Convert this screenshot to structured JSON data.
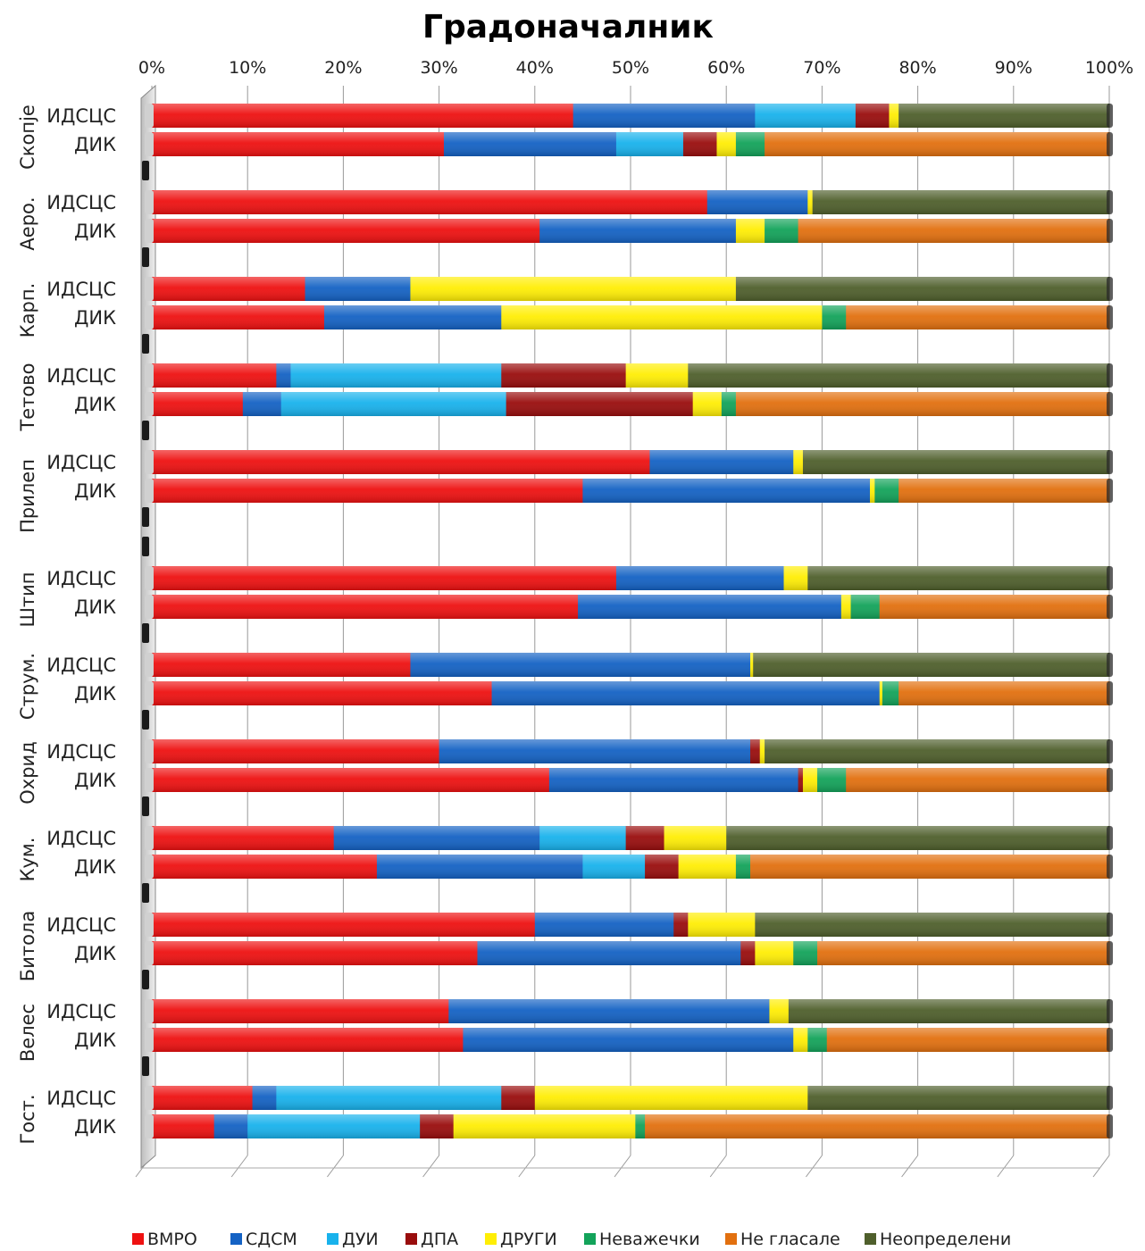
{
  "chart_data": {
    "type": "bar",
    "orientation": "horizontal",
    "stacked": "percent",
    "title": "Градоначалник",
    "xlim": [
      0,
      100
    ],
    "x_ticks": [
      "0%",
      "10%",
      "20%",
      "30%",
      "40%",
      "50%",
      "60%",
      "70%",
      "80%",
      "90%",
      "100%"
    ],
    "grid": true,
    "legend_position": "bottom",
    "series": [
      {
        "name": "ВМРО",
        "color": "#ee1111"
      },
      {
        "name": "СДСМ",
        "color": "#1462c4"
      },
      {
        "name": "ДУИ",
        "color": "#18b2ec"
      },
      {
        "name": "ДПА",
        "color": "#990d0d"
      },
      {
        "name": "ДРУГИ",
        "color": "#ffee05"
      },
      {
        "name": "Неважечки",
        "color": "#13a35a"
      },
      {
        "name": "Не гласале",
        "color": "#e2700f"
      },
      {
        "name": "Неопределени",
        "color": "#4f5f2c"
      }
    ],
    "groups": [
      {
        "name": "Скопје",
        "rows": [
          {
            "label": "ИДСЦС",
            "values": [
              44.0,
              19.0,
              10.5,
              3.5,
              1.0,
              0.0,
              0.0,
              22.0
            ]
          },
          {
            "label": "ДИК",
            "values": [
              30.5,
              18.0,
              7.0,
              3.5,
              2.0,
              3.0,
              36.0,
              0.0
            ]
          }
        ]
      },
      {
        "name": "Аеро.",
        "rows": [
          {
            "label": "ИДСЦС",
            "values": [
              58.0,
              10.5,
              0.0,
              0.0,
              0.5,
              0.0,
              0.0,
              31.0
            ]
          },
          {
            "label": "ДИК",
            "values": [
              40.5,
              20.5,
              0.0,
              0.0,
              3.0,
              3.5,
              32.5,
              0.0
            ]
          }
        ]
      },
      {
        "name": "Карп.",
        "rows": [
          {
            "label": "ИДСЦС",
            "values": [
              16.0,
              11.0,
              0.0,
              0.0,
              34.0,
              0.0,
              0.0,
              39.0
            ]
          },
          {
            "label": "ДИК",
            "values": [
              18.0,
              18.5,
              0.0,
              0.0,
              33.5,
              2.5,
              27.5,
              0.0
            ]
          }
        ]
      },
      {
        "name": "Тетово",
        "rows": [
          {
            "label": "ИДСЦС",
            "values": [
              13.0,
              1.5,
              22.0,
              13.0,
              6.5,
              0.0,
              0.0,
              44.0
            ]
          },
          {
            "label": "ДИК",
            "values": [
              9.5,
              4.0,
              23.5,
              19.5,
              3.0,
              1.5,
              39.0,
              0.0
            ]
          }
        ]
      },
      {
        "name": "Прилеп",
        "rows": [
          {
            "label": "ИДСЦС",
            "values": [
              52.0,
              15.0,
              0.0,
              0.0,
              1.0,
              0.0,
              0.0,
              32.0
            ]
          },
          {
            "label": "ДИК",
            "values": [
              45.0,
              30.0,
              0.0,
              0.0,
              0.5,
              2.5,
              22.0,
              0.0
            ]
          }
        ]
      },
      {
        "name": "Штип",
        "rows": [
          {
            "label": "ИДСЦС",
            "values": [
              48.5,
              17.5,
              0.0,
              0.0,
              2.5,
              0.0,
              0.0,
              31.5
            ]
          },
          {
            "label": "ДИК",
            "values": [
              44.5,
              27.5,
              0.0,
              0.0,
              1.0,
              3.0,
              24.0,
              0.0
            ]
          }
        ]
      },
      {
        "name": "Струм.",
        "rows": [
          {
            "label": "ИДСЦС",
            "values": [
              27.0,
              35.5,
              0.0,
              0.0,
              0.3,
              0.0,
              0.0,
              37.2
            ]
          },
          {
            "label": "ДИК",
            "values": [
              35.5,
              40.5,
              0.0,
              0.0,
              0.3,
              1.7,
              22.0,
              0.0
            ]
          }
        ]
      },
      {
        "name": "Охрид",
        "rows": [
          {
            "label": "ИДСЦС",
            "values": [
              30.0,
              32.5,
              0.0,
              1.0,
              0.5,
              0.0,
              0.0,
              36.0
            ]
          },
          {
            "label": "ДИК",
            "values": [
              41.5,
              26.0,
              0.0,
              0.5,
              1.5,
              3.0,
              27.5,
              0.0
            ]
          }
        ]
      },
      {
        "name": "Кум.",
        "rows": [
          {
            "label": "ИДСЦС",
            "values": [
              19.0,
              21.5,
              9.0,
              4.0,
              6.5,
              0.0,
              0.0,
              40.0
            ]
          },
          {
            "label": "ДИК",
            "values": [
              23.5,
              21.5,
              6.5,
              3.5,
              6.0,
              1.5,
              37.5,
              0.0
            ]
          }
        ]
      },
      {
        "name": "Битола",
        "rows": [
          {
            "label": "ИДСЦС",
            "values": [
              40.0,
              14.5,
              0.0,
              1.5,
              7.0,
              0.0,
              0.0,
              37.0
            ]
          },
          {
            "label": "ДИК",
            "values": [
              34.0,
              27.5,
              0.0,
              1.5,
              4.0,
              2.5,
              30.5,
              0.0
            ]
          }
        ]
      },
      {
        "name": "Велес",
        "rows": [
          {
            "label": "ИДСЦС",
            "values": [
              31.0,
              33.5,
              0.0,
              0.0,
              2.0,
              0.0,
              0.0,
              33.5
            ]
          },
          {
            "label": "ДИК",
            "values": [
              32.5,
              34.5,
              0.0,
              0.0,
              1.5,
              2.0,
              29.5,
              0.0
            ]
          }
        ]
      },
      {
        "name": "Гост.",
        "rows": [
          {
            "label": "ИДСЦС",
            "values": [
              10.5,
              2.5,
              23.5,
              3.5,
              28.5,
              0.0,
              0.0,
              31.5
            ]
          },
          {
            "label": "ДИК",
            "values": [
              6.5,
              3.5,
              18.0,
              3.5,
              19.0,
              1.0,
              48.5,
              0.0
            ]
          }
        ]
      }
    ]
  }
}
